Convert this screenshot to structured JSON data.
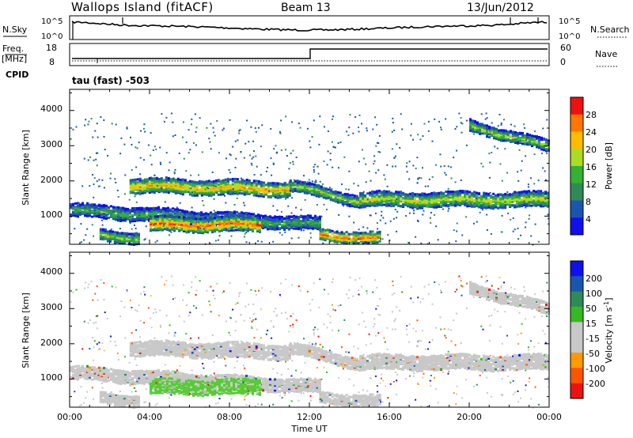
{
  "header": {
    "site": "Wallops Island (fitACF)",
    "beam": "Beam 13",
    "date": "13/Jun/2012"
  },
  "noise_panel": {
    "left_label": "N.Sky",
    "right_label": "N.Search",
    "tick_top": "10^5",
    "tick_bottom": "10^0",
    "rtick_top": "10^5",
    "rtick_bottom": "10^0"
  },
  "freq_panel": {
    "left_label_1": "Freq.",
    "left_label_2": "[MHz]",
    "right_label": "Nave",
    "ticks_left": [
      "18",
      "8"
    ],
    "ticks_right": [
      "60",
      "0"
    ]
  },
  "cpid": {
    "label": "CPID",
    "value": "tau (fast)  -503"
  },
  "x_axis": {
    "title": "Time UT",
    "ticks": [
      "00:00",
      "04:00",
      "08:00",
      "12:00",
      "16:00",
      "20:00",
      "00:00"
    ]
  },
  "colors": {
    "power_scale": [
      "#1010ee",
      "#1a56b0",
      "#2e8b57",
      "#33b233",
      "#aadd22",
      "#ffbb00",
      "#ff7700",
      "#ee1111"
    ],
    "velocity_scale": [
      "#ee1111",
      "#ff5500",
      "#ff9900",
      "#c8c8c8",
      "#c8c8c8",
      "#33bb22",
      "#2e8b57",
      "#1a56b0",
      "#1010ee"
    ]
  },
  "chart_data": [
    {
      "type": "heatmap",
      "name": "power",
      "ylabel": "Slant Range [km]",
      "yticks": [
        "1000",
        "2000",
        "3000",
        "4000"
      ],
      "colorbar_label": "Power [dB]",
      "colorbar_ticks": [
        "4",
        "8",
        "12",
        "16",
        "20",
        "24",
        "28"
      ],
      "ylim": [
        200,
        4600
      ],
      "xlim_hours": [
        0,
        24
      ],
      "bands": [
        {
          "t0": 0.0,
          "t1": 12.5,
          "r_start": 1200,
          "r_end": 800,
          "width": 180,
          "peak": 16
        },
        {
          "t0": 3.0,
          "t1": 11.0,
          "r_start": 1900,
          "r_end": 1800,
          "width": 200,
          "peak": 26
        },
        {
          "t0": 11.0,
          "t1": 14.5,
          "r_start": 1900,
          "r_end": 1450,
          "width": 150,
          "peak": 20
        },
        {
          "t0": 14.5,
          "t1": 24.0,
          "r_start": 1500,
          "r_end": 1500,
          "width": 200,
          "peak": 22
        },
        {
          "t0": 4.0,
          "t1": 9.5,
          "r_start": 800,
          "r_end": 800,
          "width": 200,
          "peak": 30
        },
        {
          "t0": 12.5,
          "t1": 15.5,
          "r_start": 500,
          "r_end": 400,
          "width": 150,
          "peak": 30
        },
        {
          "t0": 1.5,
          "t1": 3.5,
          "r_start": 500,
          "r_end": 400,
          "width": 150,
          "peak": 20
        },
        {
          "t0": 20.0,
          "t1": 24.0,
          "r_start": 3600,
          "r_end": 3000,
          "width": 150,
          "peak": 20
        }
      ]
    },
    {
      "type": "heatmap",
      "name": "velocity",
      "ylabel": "Slant Range [km]",
      "yticks": [
        "1000",
        "2000",
        "3000",
        "4000"
      ],
      "colorbar_label": "Velocity [m s^-1]",
      "colorbar_ticks": [
        "200",
        "100",
        "50",
        "15",
        "-15",
        "-50",
        "-100",
        "-200"
      ],
      "ylim": [
        200,
        4600
      ],
      "xlim_hours": [
        0,
        24
      ]
    }
  ]
}
